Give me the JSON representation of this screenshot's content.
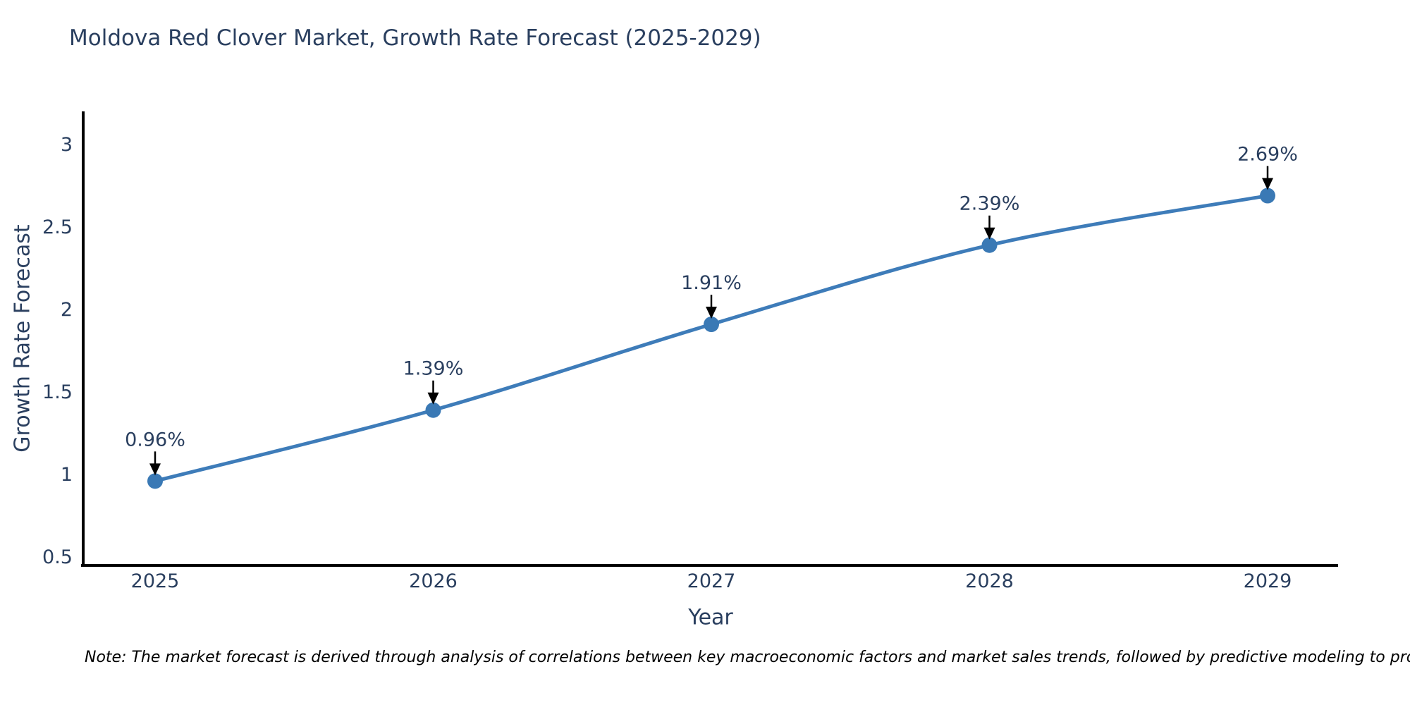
{
  "header": {
    "title": "Moldova Red Clover Market, Growth Rate Forecast (2025-2029)"
  },
  "chart_data": {
    "type": "line",
    "title": "Moldova Red Clover Market, Growth Rate Forecast (2025-2029)",
    "categories": [
      "2025",
      "2026",
      "2027",
      "2028",
      "2029"
    ],
    "values": [
      0.96,
      1.39,
      1.91,
      2.39,
      2.69
    ],
    "point_labels": [
      "0.96%",
      "1.39%",
      "1.91%",
      "2.39%",
      "2.69%"
    ],
    "xlabel": "Year",
    "ylabel": "Growth Rate Forecast",
    "ylim": [
      0.5,
      3.2
    ],
    "yticks": [
      "0.5",
      "1",
      "1.5",
      "2",
      "2.5",
      "3"
    ],
    "grid": false,
    "legend_position": "none",
    "line_color": "#3e7cb9",
    "marker_color": "#3a79b5",
    "axis_line_color": "#000000",
    "tick_text_color": "#2a3f5f",
    "annotation_text_color": "#2a3f5f",
    "arrow_color": "#000000",
    "background_color": "#ffffff"
  },
  "footer": {
    "note": "Note: The market forecast is derived through analysis of correlations between key macroeconomic factors and market sales trends, followed by predictive modeling to project future sales"
  }
}
